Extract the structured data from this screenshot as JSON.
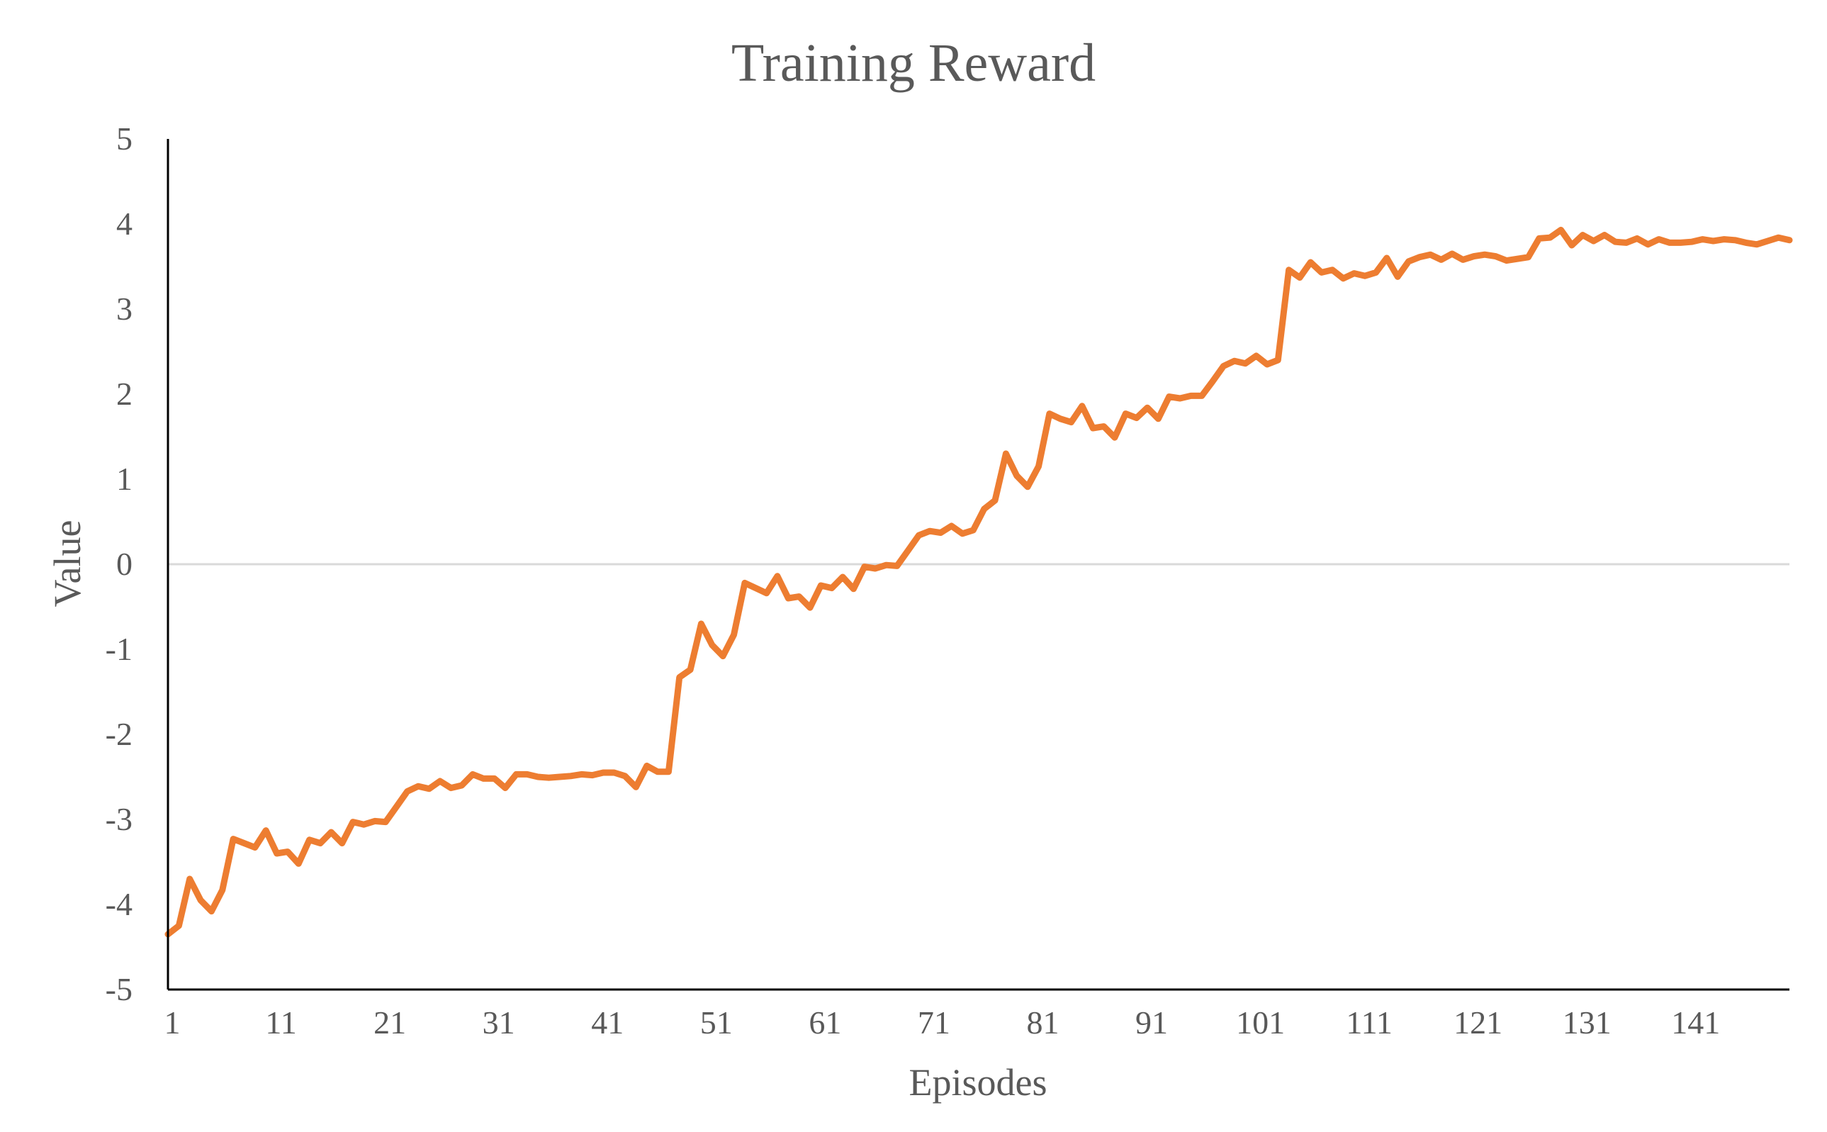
{
  "chart_data": {
    "type": "line",
    "title": "Training Reward",
    "xlabel": "Episodes",
    "ylabel": "Value",
    "ylim": [
      -5,
      5
    ],
    "y_ticks": [
      "5",
      "4",
      "3",
      "2",
      "1",
      "0",
      "-1",
      "-2",
      "-3",
      "-4",
      "-5"
    ],
    "x_ticks": [
      "1",
      "11",
      "21",
      "31",
      "41",
      "51",
      "61",
      "71",
      "81",
      "91",
      "101",
      "111",
      "121",
      "131",
      "141"
    ],
    "x_range": [
      1,
      150
    ],
    "grid": "zero-line only",
    "legend": "none",
    "colors": {
      "series": "#ed7d31",
      "zero_line": "#d9d9d9",
      "axis": "#000000",
      "text": "#595959"
    },
    "series": [
      {
        "x": [
          1,
          2,
          3,
          4,
          5,
          6,
          7,
          8,
          9,
          10,
          11,
          12,
          13,
          14,
          15,
          16,
          17,
          18,
          19,
          20,
          21,
          22,
          23,
          24,
          25,
          26,
          27,
          28,
          29,
          30,
          31,
          32,
          33,
          34,
          35,
          36,
          37,
          38,
          39,
          40,
          41,
          42,
          43,
          44,
          45,
          46,
          47,
          48,
          49,
          50,
          51,
          52,
          53,
          54,
          55,
          56,
          57,
          58,
          59,
          60,
          61,
          62,
          63,
          64,
          65,
          66,
          67,
          68,
          69,
          70,
          71,
          72,
          73,
          74,
          75,
          76,
          77,
          78,
          79,
          80,
          81,
          82,
          83,
          84,
          85,
          86,
          87,
          88,
          89,
          90,
          91,
          92,
          93,
          94,
          95,
          96,
          97,
          98,
          99,
          100,
          101,
          102,
          103,
          104,
          105,
          106,
          107,
          108,
          109,
          110,
          111,
          112,
          113,
          114,
          115,
          116,
          117,
          118,
          119,
          120,
          121,
          122,
          123,
          124,
          125,
          126,
          127,
          128,
          129,
          130,
          131,
          132,
          133,
          134,
          135,
          136,
          137,
          138,
          139,
          140,
          141,
          142,
          143,
          144,
          145,
          146,
          147,
          148,
          149,
          150
        ],
        "values": [
          -4.35,
          -4.25,
          -3.7,
          -3.95,
          -4.08,
          -3.83,
          -3.23,
          -3.28,
          -3.33,
          -3.13,
          -3.4,
          -3.38,
          -3.52,
          -3.24,
          -3.28,
          -3.15,
          -3.28,
          -3.03,
          -3.06,
          -3.02,
          -3.03,
          -2.85,
          -2.67,
          -2.61,
          -2.64,
          -2.55,
          -2.63,
          -2.6,
          -2.47,
          -2.52,
          -2.52,
          -2.63,
          -2.47,
          -2.47,
          -2.5,
          -2.51,
          -2.5,
          -2.49,
          -2.47,
          -2.48,
          -2.45,
          -2.45,
          -2.49,
          -2.62,
          -2.37,
          -2.44,
          -2.44,
          -1.33,
          -1.24,
          -0.7,
          -0.95,
          -1.08,
          -0.83,
          -0.22,
          -0.28,
          -0.34,
          -0.14,
          -0.4,
          -0.38,
          -0.51,
          -0.25,
          -0.28,
          -0.15,
          -0.29,
          -0.03,
          -0.05,
          -0.01,
          -0.02,
          0.16,
          0.34,
          0.39,
          0.37,
          0.45,
          0.36,
          0.4,
          0.65,
          0.75,
          1.3,
          1.04,
          0.91,
          1.15,
          1.77,
          1.71,
          1.67,
          1.86,
          1.6,
          1.62,
          1.49,
          1.77,
          1.72,
          1.84,
          1.71,
          1.97,
          1.95,
          1.98,
          1.98,
          2.15,
          2.33,
          2.39,
          2.36,
          2.45,
          2.35,
          2.4,
          3.46,
          3.37,
          3.55,
          3.43,
          3.46,
          3.36,
          3.42,
          3.39,
          3.43,
          3.6,
          3.38,
          3.56,
          3.61,
          3.64,
          3.58,
          3.65,
          3.58,
          3.62,
          3.64,
          3.62,
          3.57,
          3.59,
          3.61,
          3.83,
          3.84,
          3.93,
          3.75,
          3.87,
          3.8,
          3.87,
          3.79,
          3.78,
          3.83,
          3.76,
          3.82,
          3.78,
          3.78,
          3.79,
          3.82,
          3.8,
          3.82,
          3.81,
          3.78,
          3.76,
          3.8,
          3.84,
          3.81
        ]
      }
    ]
  }
}
